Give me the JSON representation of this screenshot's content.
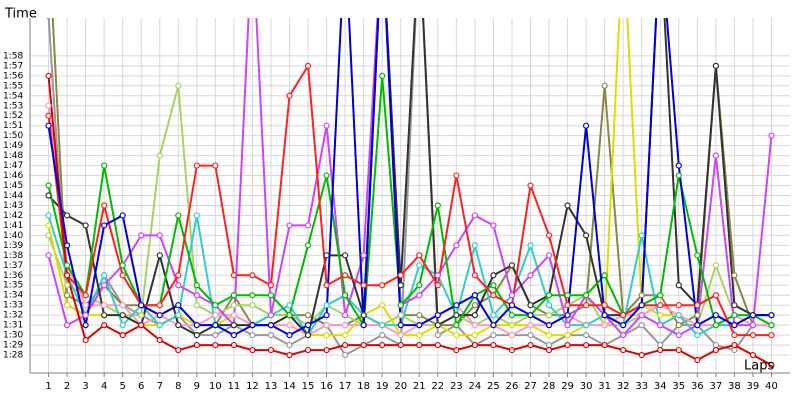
{
  "chart_data": {
    "type": "line",
    "y_label": "Time",
    "x_label": "Laps",
    "x": [
      1,
      2,
      3,
      4,
      5,
      6,
      7,
      8,
      9,
      10,
      11,
      12,
      13,
      14,
      15,
      16,
      17,
      18,
      19,
      20,
      21,
      22,
      23,
      24,
      25,
      26,
      27,
      28,
      29,
      30,
      31,
      32,
      33,
      34,
      35,
      36,
      37,
      38,
      39,
      40
    ],
    "xlim": [
      0,
      41
    ],
    "xticks": [
      1,
      2,
      3,
      4,
      5,
      6,
      7,
      8,
      9,
      10,
      11,
      12,
      13,
      14,
      15,
      16,
      17,
      18,
      19,
      20,
      21,
      22,
      23,
      24,
      25,
      26,
      27,
      28,
      29,
      30,
      31,
      32,
      33,
      34,
      35,
      36,
      37,
      38,
      39,
      40
    ],
    "ylim": [
      86.2,
      121.8
    ],
    "yticks": [
      {
        "value": 88,
        "label": "1:28"
      },
      {
        "value": 89,
        "label": "1:29"
      },
      {
        "value": 90,
        "label": "1:30"
      },
      {
        "value": 91,
        "label": "1:31"
      },
      {
        "value": 92,
        "label": "1:32"
      },
      {
        "value": 93,
        "label": "1:33"
      },
      {
        "value": 94,
        "label": "1:34"
      },
      {
        "value": 95,
        "label": "1:35"
      },
      {
        "value": 96,
        "label": "1:36"
      },
      {
        "value": 97,
        "label": "1:37"
      },
      {
        "value": 98,
        "label": "1:38"
      },
      {
        "value": 99,
        "label": "1:39"
      },
      {
        "value": 100,
        "label": "1:40"
      },
      {
        "value": 101,
        "label": "1:41"
      },
      {
        "value": 102,
        "label": "1:42"
      },
      {
        "value": 103,
        "label": "1:43"
      },
      {
        "value": 104,
        "label": "1:44"
      },
      {
        "value": 105,
        "label": "1:45"
      },
      {
        "value": 106,
        "label": "1:46"
      },
      {
        "value": 107,
        "label": "1:47"
      },
      {
        "value": 108,
        "label": "1:48"
      },
      {
        "value": 109,
        "label": "1:49"
      },
      {
        "value": 110,
        "label": "1:50"
      },
      {
        "value": 111,
        "label": "1:51"
      },
      {
        "value": 112,
        "label": "1:52"
      },
      {
        "value": 113,
        "label": "1:53"
      },
      {
        "value": 114,
        "label": "1:54"
      },
      {
        "value": 115,
        "label": "1:55"
      },
      {
        "value": 116,
        "label": "1:56"
      },
      {
        "value": 117,
        "label": "1:57"
      },
      {
        "value": 118,
        "label": "1:58"
      }
    ],
    "grid": true,
    "series": [
      {
        "color": "#999999",
        "values": [
          122,
          93,
          92,
          96,
          93,
          92,
          91,
          92,
          90,
          90,
          91,
          90,
          90,
          89,
          90,
          91,
          88,
          89,
          90,
          89,
          130,
          90,
          91,
          89,
          90,
          90,
          90,
          89,
          90,
          90,
          89,
          90,
          91,
          89,
          91,
          91,
          89,
          88.5,
          91,
          91
        ]
      },
      {
        "color": "#888844",
        "values": [
          130,
          94,
          93,
          95,
          93,
          93,
          92,
          93,
          91,
          91,
          94,
          91,
          92,
          92,
          92,
          91,
          91,
          92,
          91,
          92,
          92,
          91,
          91,
          93,
          94,
          97,
          93,
          92,
          92,
          93,
          115,
          92,
          94,
          94,
          91,
          92,
          117,
          96,
          91,
          91
        ]
      },
      {
        "color": "#aad066",
        "values": [
          100,
          95,
          94,
          93,
          92,
          92,
          108,
          115,
          93,
          92,
          93,
          93,
          92,
          92,
          91,
          93,
          92,
          91,
          91,
          92,
          91,
          91,
          92,
          91,
          92,
          91,
          92,
          92,
          93,
          94,
          91,
          91,
          92,
          91,
          92,
          91,
          97,
          92,
          91,
          91
        ]
      },
      {
        "color": "#dddd00",
        "values": [
          101,
          93,
          92,
          92,
          92,
          91,
          91,
          92,
          91,
          91,
          92,
          91,
          91,
          91,
          90,
          90,
          90,
          92,
          93,
          90,
          90,
          91,
          90,
          90,
          91,
          91,
          91,
          90,
          90,
          91,
          91,
          130,
          93,
          92,
          92,
          91,
          91,
          91,
          92,
          92
        ]
      },
      {
        "color": "#ff99cc",
        "values": [
          113,
          97,
          93,
          93,
          93,
          91,
          92,
          91,
          91,
          92,
          92,
          91,
          91,
          91,
          90,
          91,
          91,
          91,
          91,
          90,
          91,
          92,
          93,
          91,
          91,
          90,
          91,
          91,
          92,
          91,
          91,
          92,
          92,
          93,
          92,
          91,
          91,
          92,
          91,
          91
        ]
      },
      {
        "color": "#33cccc",
        "values": [
          102,
          96,
          92,
          96,
          91,
          93,
          91,
          92,
          102,
          91,
          91,
          91,
          92,
          93,
          90,
          93,
          94,
          92,
          91,
          91,
          97,
          96,
          92,
          99,
          92,
          94,
          99,
          93,
          91,
          91,
          92,
          91,
          100,
          91,
          92,
          90,
          91,
          91,
          92,
          91
        ]
      },
      {
        "color": "#cc44ff",
        "values": [
          98,
          91,
          92,
          95,
          97,
          100,
          100,
          95,
          94,
          93,
          91,
          130,
          92,
          101,
          101,
          111,
          92,
          98,
          130,
          93,
          94,
          96,
          99,
          102,
          101,
          94,
          96,
          98,
          91,
          94,
          92,
          90,
          92,
          91,
          90,
          91,
          108,
          91,
          91,
          110
        ]
      },
      {
        "color": "#333333",
        "values": [
          104,
          102,
          101,
          92,
          92,
          91,
          98,
          91,
          90,
          91,
          91,
          91,
          91,
          92,
          90,
          98,
          98,
          92,
          130,
          95,
          130,
          91,
          92,
          92,
          96,
          97,
          93,
          94,
          103,
          100,
          92,
          92,
          93,
          130,
          95,
          93,
          117,
          93,
          92,
          92
        ]
      },
      {
        "color": "#00bb00",
        "values": [
          105,
          97,
          94,
          107,
          97,
          93,
          93,
          102,
          95,
          93,
          94,
          94,
          94,
          92,
          99,
          106,
          94,
          91,
          116,
          93,
          95,
          103,
          91,
          94,
          95,
          92,
          92,
          94,
          94,
          94,
          96,
          92,
          93,
          94,
          106,
          98,
          91,
          92,
          92,
          91
        ]
      },
      {
        "color": "#ff2020",
        "values": [
          112,
          96,
          94,
          103,
          96,
          93,
          93,
          96,
          107,
          107,
          96,
          96,
          95,
          114,
          117,
          95,
          96,
          95,
          95,
          96,
          98,
          95,
          106,
          96,
          94,
          93,
          105,
          100,
          93,
          93,
          93,
          92,
          93,
          93,
          93,
          93,
          94,
          90,
          90,
          90
        ]
      },
      {
        "color": "#dd0000",
        "values": [
          116,
          96,
          89.5,
          91,
          90,
          91,
          89.5,
          88.5,
          89,
          89,
          89,
          88.5,
          88.5,
          88,
          88.5,
          88.5,
          89,
          89,
          89,
          89,
          89,
          89,
          88.5,
          89,
          89,
          88.5,
          89,
          88.5,
          89,
          89,
          89,
          88.5,
          88,
          88.5,
          88.5,
          87.5,
          88.5,
          89,
          88,
          87
        ]
      },
      {
        "color": "#0000dd",
        "values": [
          111,
          99,
          91,
          101,
          102,
          93,
          92,
          93,
          91,
          91,
          90,
          91,
          91,
          90,
          91,
          92,
          130,
          91,
          130,
          91,
          91,
          92,
          93,
          94,
          91,
          93,
          92,
          91,
          92,
          111,
          92,
          91,
          93,
          130,
          107,
          91,
          92,
          91,
          92,
          92
        ]
      }
    ]
  }
}
